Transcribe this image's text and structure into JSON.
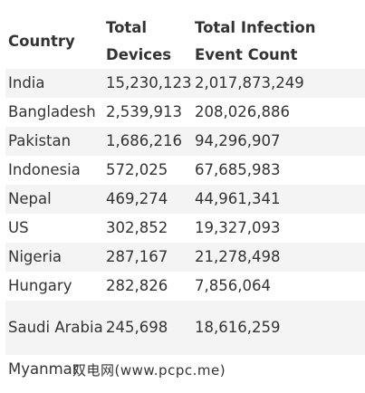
{
  "table": {
    "headers": [
      "Country",
      "Total Devices",
      "Total Infection Event Count"
    ],
    "rows": [
      [
        "India",
        "15,230,123",
        "2,017,873,249"
      ],
      [
        "Bangladesh",
        "2,539,913",
        "208,026,886"
      ],
      [
        "Pakistan",
        "1,686,216",
        "94,296,907"
      ],
      [
        "Indonesia",
        "572,025",
        "67,685,983"
      ],
      [
        "Nepal",
        "469,274",
        "44,961,341"
      ],
      [
        "US",
        "302,852",
        "19,327,093"
      ],
      [
        "Nigeria",
        "287,167",
        "21,278,498"
      ],
      [
        "Hungary",
        "282,826",
        "7,856,064"
      ],
      [
        "Saudi Arabia",
        "245,698",
        "18,616,259"
      ],
      [
        "Myanmar",
        "",
        ""
      ]
    ]
  },
  "watermark": {
    "text": "双电网(www.pcpc.me)"
  }
}
